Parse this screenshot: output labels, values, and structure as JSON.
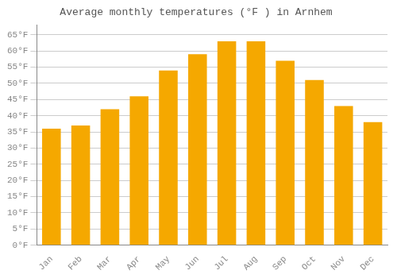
{
  "chart_data": {
    "type": "bar",
    "title": "Average monthly temperatures (°F ) in Arnhem",
    "categories": [
      "Jan",
      "Feb",
      "Mar",
      "Apr",
      "May",
      "Jun",
      "Jul",
      "Aug",
      "Sep",
      "Oct",
      "Nov",
      "Dec"
    ],
    "values": [
      36.0,
      37.0,
      42.0,
      46.0,
      54.0,
      59.0,
      63.0,
      63.0,
      57.0,
      51.0,
      43.0,
      38.0
    ],
    "color": "#F5A800",
    "ylim": [
      0,
      68
    ],
    "yticks": [
      {
        "value": 0,
        "label": "0°F"
      },
      {
        "value": 5,
        "label": "5°F"
      },
      {
        "value": 10,
        "label": "10°F"
      },
      {
        "value": 15,
        "label": "15°F"
      },
      {
        "value": 20,
        "label": "20°F"
      },
      {
        "value": 25,
        "label": "25°F"
      },
      {
        "value": 30,
        "label": "30°F"
      },
      {
        "value": 35,
        "label": "35°F"
      },
      {
        "value": 40,
        "label": "40°F"
      },
      {
        "value": 45,
        "label": "45°F"
      },
      {
        "value": 50,
        "label": "50°F"
      },
      {
        "value": 55,
        "label": "55°F"
      },
      {
        "value": 60,
        "label": "60°F"
      },
      {
        "value": 65,
        "label": "65°F"
      }
    ],
    "grid": true
  }
}
